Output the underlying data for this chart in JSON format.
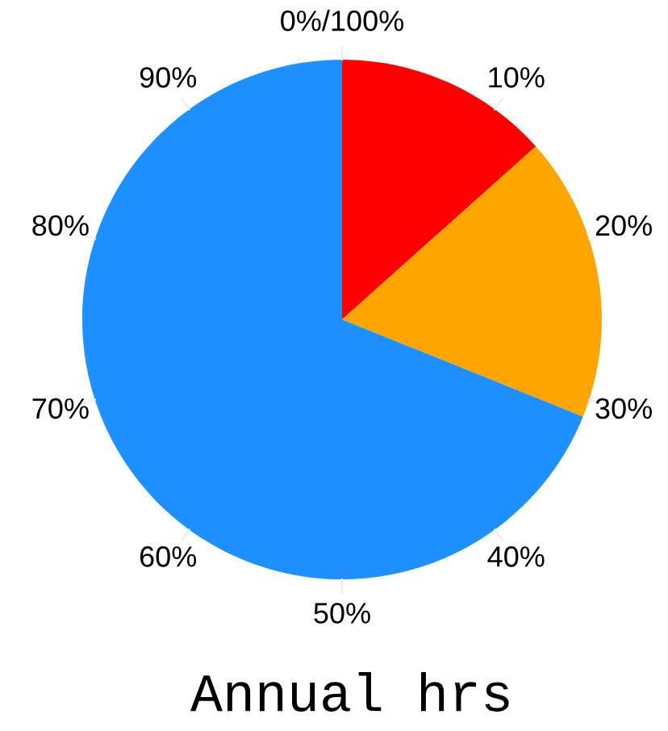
{
  "chart_data": {
    "type": "pie",
    "title": "Annual hrs",
    "categories": [
      null,
      null,
      null
    ],
    "values": [
      13.4,
      17.7,
      68.9
    ],
    "colors": [
      "#ff0000",
      "#ffa500",
      "#1e90ff"
    ],
    "annotations": [
      "0%/100%",
      "10%",
      "20%",
      "30%",
      "40%",
      "50%",
      "60%",
      "70%",
      "80%",
      "90%"
    ]
  }
}
